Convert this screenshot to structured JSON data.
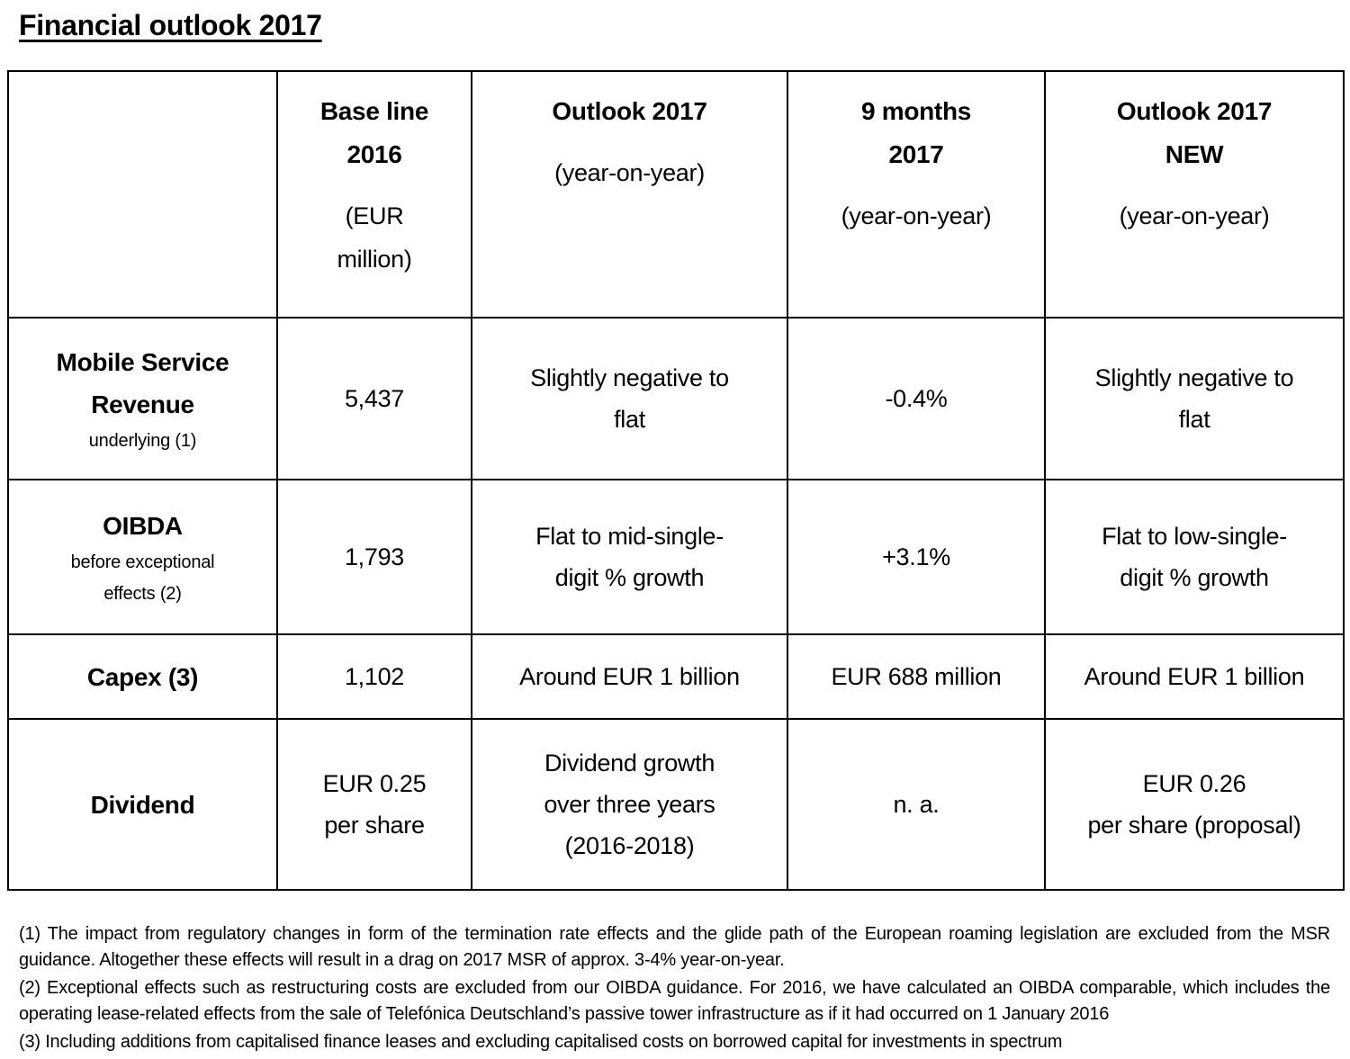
{
  "page": {
    "title": "Financial outlook 2017"
  },
  "table": {
    "header": {
      "baseline_2016": {
        "bold": [
          "Base line",
          "2016"
        ],
        "sub": [
          "(EUR",
          "million)"
        ]
      },
      "outlook_2017": {
        "bold": [
          "Outlook 2017"
        ],
        "sub": [
          "(year-on-year)"
        ]
      },
      "nine_months_2017": {
        "bold": [
          "9 months",
          "2017"
        ],
        "sub": [
          "(year-on-year)"
        ]
      },
      "outlook_2017_new": {
        "bold": [
          "Outlook 2017",
          "NEW"
        ],
        "sub": [
          "(year-on-year)"
        ]
      }
    },
    "rows": [
      {
        "label": [
          "Mobile Service",
          "Revenue"
        ],
        "sublabel": [
          "underlying (1)"
        ],
        "baseline": [
          "5,437"
        ],
        "outlook": [
          "Slightly negative to",
          "flat"
        ],
        "nine_months": [
          "-0.4%"
        ],
        "outlook_new": [
          "Slightly negative to",
          "flat"
        ]
      },
      {
        "label": [
          "OIBDA"
        ],
        "sublabel": [
          "before exceptional",
          "effects (2)"
        ],
        "baseline": [
          "1,793"
        ],
        "outlook": [
          "Flat to mid-single-",
          "digit % growth"
        ],
        "nine_months": [
          "+3.1%"
        ],
        "outlook_new": [
          "Flat to low-single-",
          "digit % growth"
        ]
      },
      {
        "label": [
          "Capex (3)"
        ],
        "sublabel": [],
        "baseline": [
          "1,102"
        ],
        "outlook": [
          "Around EUR 1 billion"
        ],
        "nine_months": [
          "EUR 688 million"
        ],
        "outlook_new": [
          "Around EUR 1 billion"
        ]
      },
      {
        "label": [
          "Dividend"
        ],
        "sublabel": [],
        "baseline": [
          "EUR 0.25",
          "per share"
        ],
        "outlook": [
          "Dividend growth",
          "over three years",
          "(2016-2018)"
        ],
        "nine_months": [
          "n. a."
        ],
        "outlook_new": [
          "EUR 0.26",
          "per share (proposal)"
        ]
      }
    ]
  },
  "footnotes": [
    "(1) The impact from regulatory changes in form of the termination rate effects and the glide path of the European roaming legislation are excluded from the MSR guidance. Altogether these effects will result in a drag on 2017 MSR of approx. 3-4% year-on-year.",
    "(2) Exceptional effects such as restructuring costs are excluded from our OIBDA guidance. For 2016, we have calculated an OIBDA comparable, which includes the operating lease-related effects from the sale of Telefónica Deutschland’s passive tower infrastructure as if it had occurred on 1 January 2016",
    "(3) Including additions from capitalised finance leases and excluding capitalised costs on borrowed capital for investments in spectrum"
  ]
}
